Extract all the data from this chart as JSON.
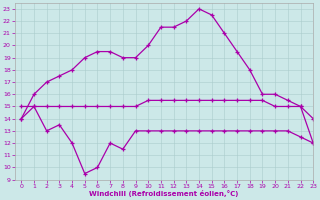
{
  "xlabel": "Windchill (Refroidissement éolien,°C)",
  "xlim": [
    -0.5,
    23
  ],
  "ylim": [
    9,
    23.5
  ],
  "xticks": [
    0,
    1,
    2,
    3,
    4,
    5,
    6,
    7,
    8,
    9,
    10,
    11,
    12,
    13,
    14,
    15,
    16,
    17,
    18,
    19,
    20,
    21,
    22,
    23
  ],
  "yticks": [
    9,
    10,
    11,
    12,
    13,
    14,
    15,
    16,
    17,
    18,
    19,
    20,
    21,
    22,
    23
  ],
  "bg_color": "#cce8e8",
  "line_color": "#aa00aa",
  "line1_x": [
    0,
    1,
    2,
    3,
    4,
    5,
    6,
    7,
    8,
    9,
    10,
    11,
    12,
    13,
    14,
    15,
    16,
    17,
    18,
    19,
    20,
    21,
    22,
    23
  ],
  "line1_y": [
    14,
    16,
    17,
    17.5,
    18,
    19,
    19.5,
    19.5,
    19,
    19,
    20,
    21.5,
    21.5,
    22,
    23,
    22.5,
    21,
    19.5,
    18,
    16,
    16,
    15.5,
    15,
    14
  ],
  "line2_x": [
    0,
    1,
    2,
    3,
    4,
    5,
    6,
    7,
    8,
    9,
    10,
    11,
    12,
    13,
    14,
    15,
    16,
    17,
    18,
    19,
    20,
    21,
    22,
    23
  ],
  "line2_y": [
    15,
    15,
    15,
    15,
    15,
    15,
    15,
    15,
    15,
    15,
    15.5,
    15.5,
    15.5,
    15.5,
    15.5,
    15.5,
    15.5,
    15.5,
    15.5,
    15.5,
    15,
    15,
    15,
    12
  ],
  "line3_x": [
    0,
    1,
    2,
    3,
    4,
    5,
    6,
    7,
    8,
    9,
    10,
    11,
    12,
    13,
    14,
    15,
    16,
    17,
    18,
    19,
    20,
    21,
    22,
    23
  ],
  "line3_y": [
    14,
    15,
    13,
    13.5,
    12,
    9.5,
    10,
    12,
    11.5,
    13,
    13,
    13,
    13,
    13,
    13,
    13,
    13,
    13,
    13,
    13,
    13,
    13,
    12.5,
    12
  ]
}
